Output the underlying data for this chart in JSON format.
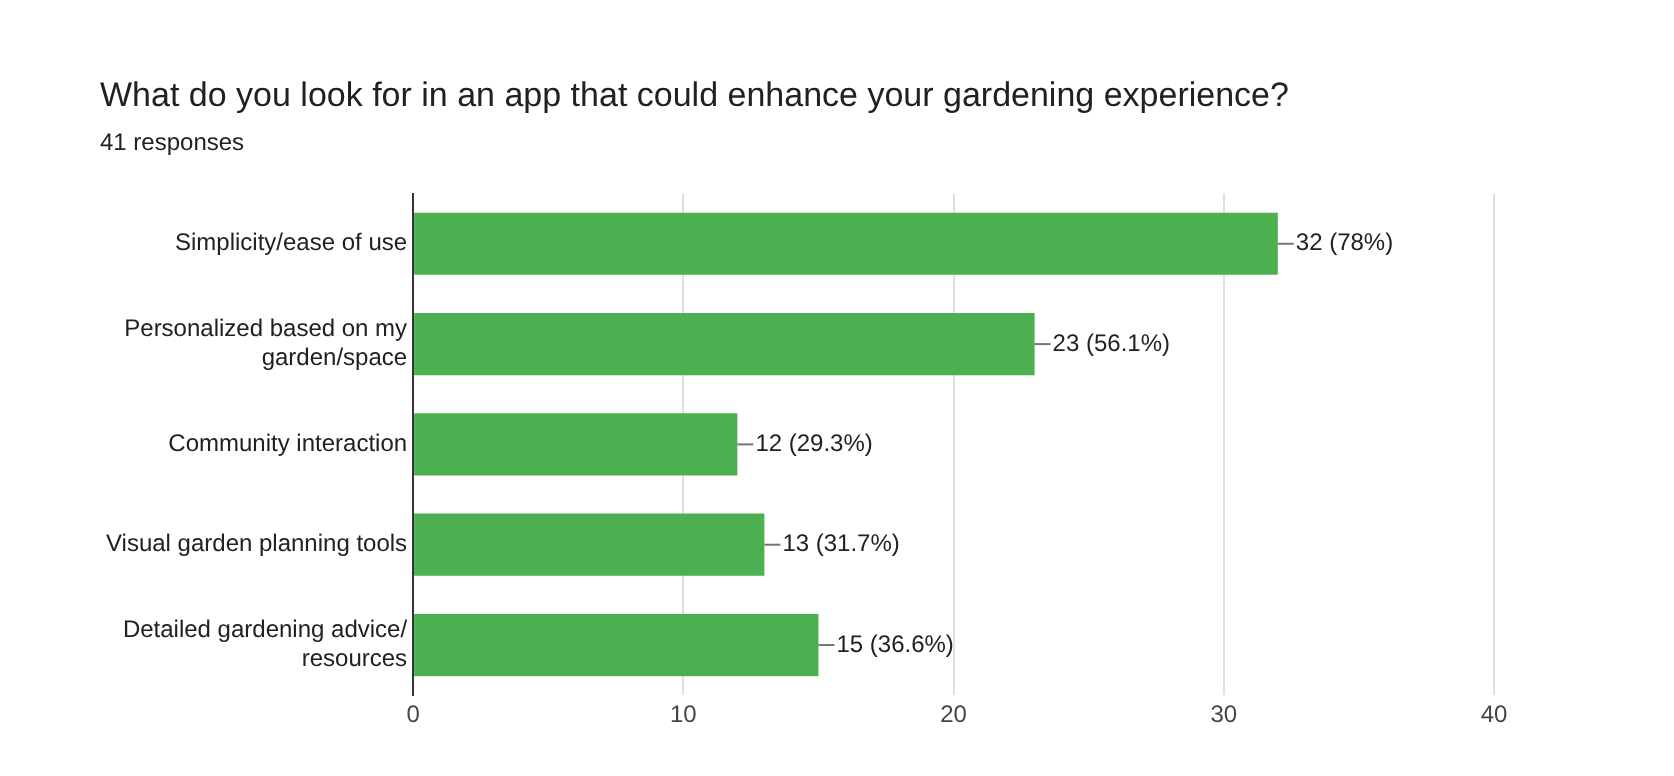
{
  "chart_data": {
    "type": "bar",
    "orientation": "horizontal",
    "title": "What do you look for in an app that could enhance your gardening experience?",
    "subtitle": "41 responses",
    "categories": [
      "Simplicity/ease of use",
      "Personalized based on my garden/space",
      "Community interaction",
      "Visual garden planning tools",
      "Detailed gardening advice/ resources"
    ],
    "values": [
      32,
      23,
      12,
      13,
      15
    ],
    "value_labels": [
      "32 (78%)",
      "23 (56.1%)",
      "12 (29.3%)",
      "13 (31.7%)",
      "15 (36.6%)"
    ],
    "color": "#4caf50",
    "xlim": [
      0,
      40
    ],
    "xticks": [
      0,
      10,
      20,
      30,
      40
    ],
    "grid": "x",
    "legend": false
  }
}
